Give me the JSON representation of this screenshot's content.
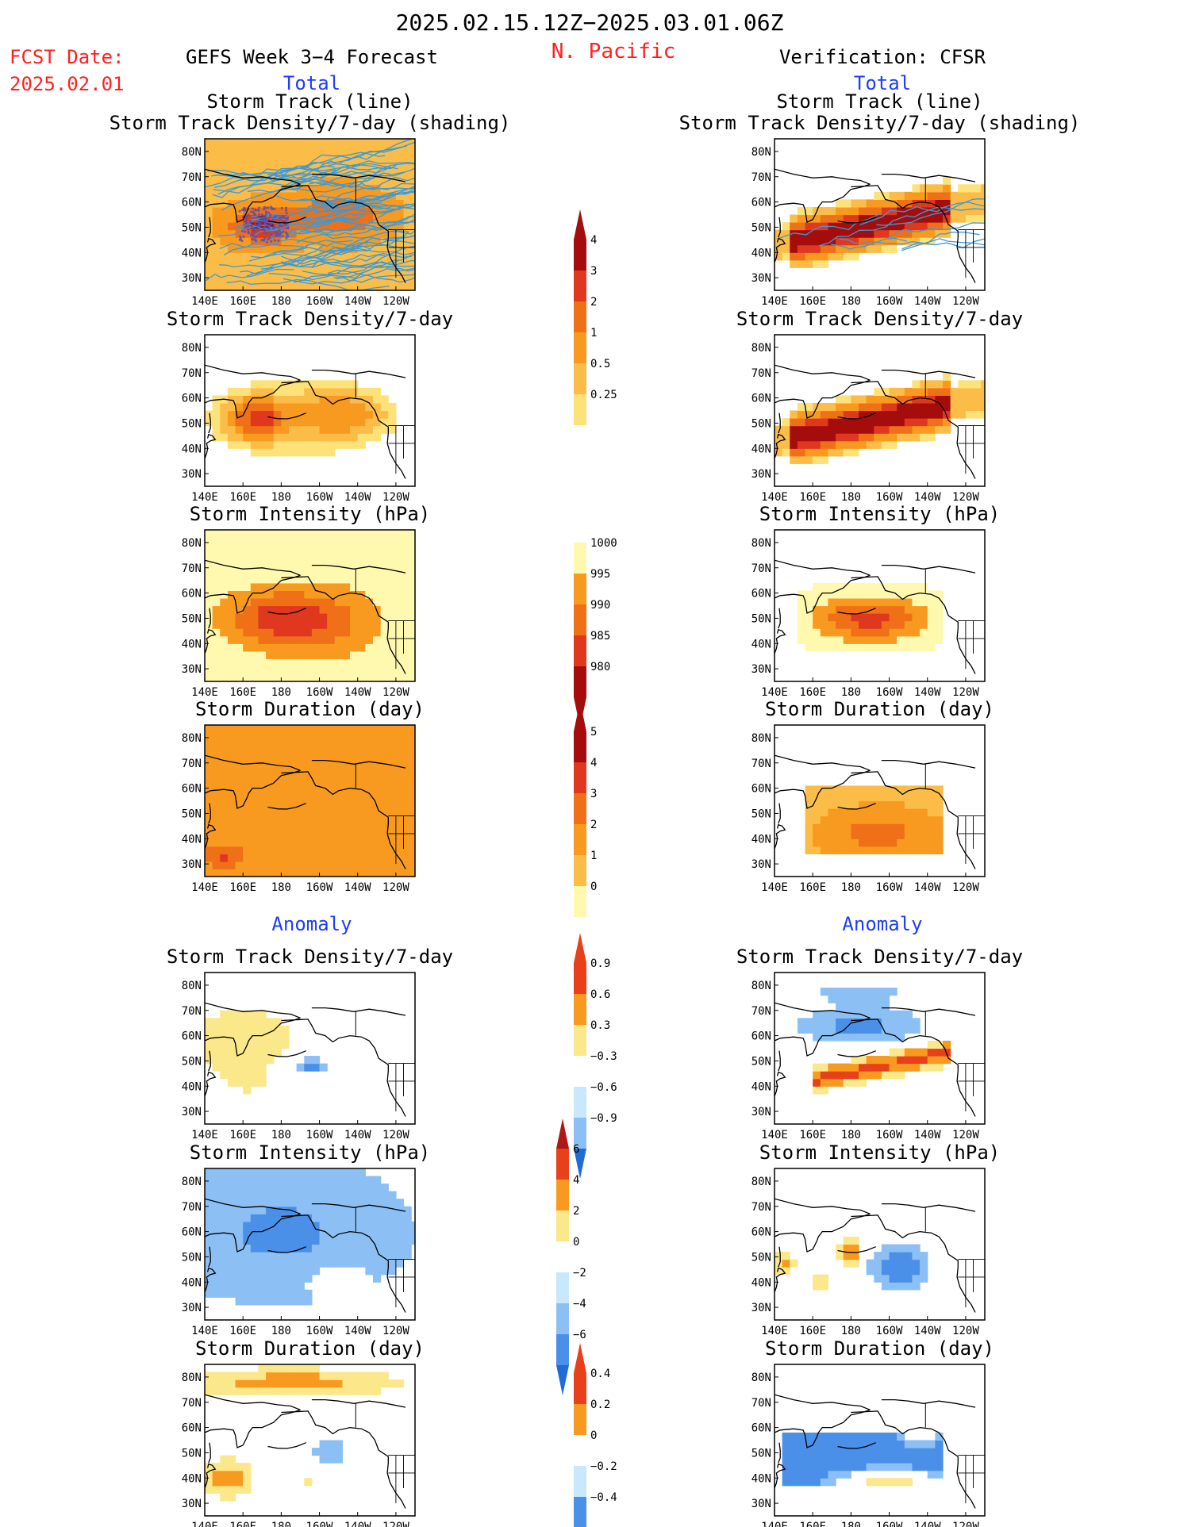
{
  "header": {
    "period": "2025.02.15.12Z−2025.03.01.06Z",
    "region": "N. Pacific",
    "fcst_label": "FCST Date:",
    "fcst_date": "2025.02.01",
    "left_title": "GEFS Week 3−4 Forecast",
    "right_title": "Verification: CFSR",
    "total_label": "Total",
    "anomaly_label": "Anomaly"
  },
  "axes": {
    "lat_labels": [
      "80N",
      "70N",
      "60N",
      "50N",
      "40N",
      "30N"
    ],
    "lon_labels": [
      "140E",
      "160E",
      "180",
      "160W",
      "140W",
      "120W"
    ]
  },
  "colors": {
    "total_palette": [
      "#fff9b0",
      "#fde27a",
      "#fbbd48",
      "#f89a1f",
      "#f07018",
      "#e0381e",
      "#a50d0d"
    ],
    "anomaly_palette": [
      "#1f6cd6",
      "#4a90e8",
      "#8cc0f5",
      "#c8e8fb",
      "#ffffff",
      "#fbe88a",
      "#fbbd48",
      "#f89a1f",
      "#e8401a"
    ],
    "track_line": "#3a9ad9"
  },
  "chart_data": [
    {
      "type": "heatmap",
      "section": "total",
      "column": "forecast",
      "title": [
        "Storm Track (line)",
        "Storm Track Density/7-day (shading)"
      ],
      "field": "track",
      "units": "storms/7-day",
      "tracks": "dense ensemble tracks 30N-80N",
      "pattern": "broad high density 40-60N, max near 50N 170E"
    },
    {
      "type": "heatmap",
      "section": "total",
      "column": "verification",
      "title": [
        "Storm Track (line)",
        "Storm Track Density/7-day (shading)"
      ],
      "field": "track_obs",
      "units": "storms/7-day",
      "pattern": "band 40-60N from 160E to 140W, values > 4"
    },
    {
      "type": "heatmap",
      "section": "total",
      "column": "forecast",
      "title": [
        "Storm Track Density/7-day"
      ],
      "field": "density",
      "units": "storms/7-day",
      "pattern": "max ~3 near 52N 170E, 0.5-2 elsewhere"
    },
    {
      "type": "heatmap",
      "section": "total",
      "column": "verification",
      "title": [
        "Storm Track Density/7-day"
      ],
      "field": "density_obs",
      "units": "storms/7-day",
      "pattern": "band > 4 from 45N 160E to 58N 140W"
    },
    {
      "type": "heatmap",
      "section": "total",
      "column": "forecast",
      "title": [
        "Storm Intensity (hPa)"
      ],
      "field": "intensity",
      "units": "hPa",
      "pattern": "980-985 core 45-55N 170E-170W, 985-995 elsewhere"
    },
    {
      "type": "heatmap",
      "section": "total",
      "column": "verification",
      "title": [
        "Storm Intensity (hPa)"
      ],
      "field": "intensity_obs",
      "units": "hPa",
      "pattern": "980-990 40-60N 150E-130W"
    },
    {
      "type": "heatmap",
      "section": "total",
      "column": "forecast",
      "title": [
        "Storm Duration (day)"
      ],
      "field": "duration",
      "units": "day",
      "pattern": "2-4 days broadly, >4 near 35N 150E"
    },
    {
      "type": "heatmap",
      "section": "total",
      "column": "verification",
      "title": [
        "Storm Duration (day)"
      ],
      "field": "duration_obs",
      "units": "day",
      "pattern": "2-4 days 35-60N"
    },
    {
      "type": "heatmap",
      "section": "anomaly",
      "column": "forecast",
      "title": [
        "Storm Track Density/7-day"
      ],
      "field": "density_anom",
      "units": "storms/7-day",
      "pattern": "weak +0.3, negative -0.6 to -0.9 near 48N 165W"
    },
    {
      "type": "heatmap",
      "section": "anomaly",
      "column": "verification",
      "title": [
        "Storm Track Density/7-day"
      ],
      "field": "density_anom_obs",
      "units": "storms/7-day",
      "pattern": "+0.9 band 40-58N 170E-140W, -0.6 north of it"
    },
    {
      "type": "heatmap",
      "section": "anomaly",
      "column": "forecast",
      "title": [
        "Storm Intensity (hPa)"
      ],
      "field": "intensity_anom",
      "units": "hPa",
      "pattern": "mostly -2 to -4, weak + near 40N 150W"
    },
    {
      "type": "heatmap",
      "section": "anomaly",
      "column": "verification",
      "title": [
        "Storm Intensity (hPa)"
      ],
      "field": "intensity_anom_obs",
      "units": "hPa",
      "pattern": "+6 near 52N 180, -6 near 45N 160W"
    },
    {
      "type": "heatmap",
      "section": "anomaly",
      "column": "forecast",
      "title": [
        "Storm Duration (day)"
      ],
      "field": "duration_anom",
      "units": "day",
      "pattern": "+0.4 north 70-80N and south 35-45N 150E, -0.2 patches"
    },
    {
      "type": "heatmap",
      "section": "anomaly",
      "column": "verification",
      "title": [
        "Storm Duration (day)"
      ],
      "field": "duration_anom_obs",
      "units": "day",
      "pattern": "-0.4 over 40-55N, +0.4 near 38N 170W"
    }
  ],
  "colorbars": [
    {
      "name": "track-density",
      "labels": [
        "4",
        "3",
        "2",
        "1",
        "0.5",
        "0.25"
      ]
    },
    {
      "name": "intensity",
      "labels": [
        "1000",
        "995",
        "990",
        "985",
        "980"
      ]
    },
    {
      "name": "duration",
      "labels": [
        "5",
        "4",
        "3",
        "2",
        "1",
        "0"
      ]
    },
    {
      "name": "density-anomaly",
      "labels": [
        "0.9",
        "0.6",
        "0.3",
        "−0.3",
        "−0.6",
        "−0.9"
      ]
    },
    {
      "name": "intensity-anomaly",
      "labels": [
        "6",
        "4",
        "2",
        "0",
        "−2",
        "−4",
        "−6"
      ]
    },
    {
      "name": "duration-anomaly",
      "labels": [
        "0.4",
        "0.2",
        "0",
        "−0.2",
        "−0.4"
      ]
    }
  ]
}
